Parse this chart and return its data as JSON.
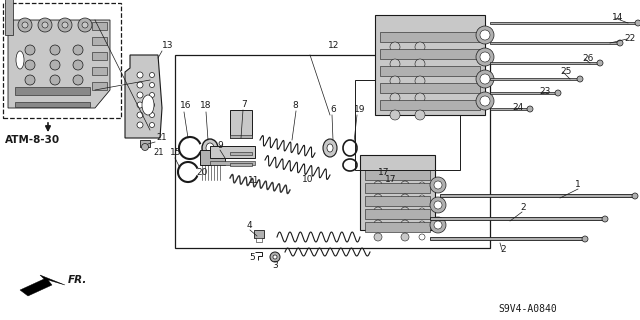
{
  "bg_color": "#ffffff",
  "line_color": "#1a1a1a",
  "fill_light": "#c8c8c8",
  "fill_mid": "#b0b0b0",
  "fill_dark": "#888888",
  "ref_code": "S9V4-A0840",
  "atm_label": "ATM-8-30",
  "fr_label": "FR.",
  "figsize": [
    6.4,
    3.2
  ],
  "dpi": 100
}
